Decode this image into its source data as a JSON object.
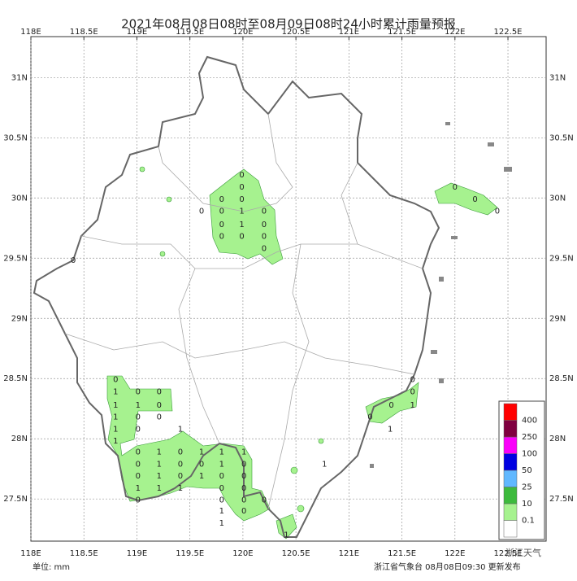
{
  "map": {
    "type": "station-map",
    "title": "2021年08月08日08时至08月09日08时24小时累计雨量预报",
    "unit_label": "单位: mm",
    "issuer": "浙江省气象台 08月08日09:30 更新发布",
    "watermark": "浙江天气",
    "xlim": [
      118,
      122.86
    ],
    "ylim": [
      27.15,
      31.34
    ],
    "xticks": [
      {
        "value": 118,
        "label": "118E"
      },
      {
        "value": 118.5,
        "label": "118.5E"
      },
      {
        "value": 119,
        "label": "119E"
      },
      {
        "value": 119.5,
        "label": "119.5E"
      },
      {
        "value": 120,
        "label": "120E"
      },
      {
        "value": 120.5,
        "label": "120.5E"
      },
      {
        "value": 121,
        "label": "121E"
      },
      {
        "value": 121.5,
        "label": "121.5E"
      },
      {
        "value": 122,
        "label": "122E"
      },
      {
        "value": 122.5,
        "label": "122.5E"
      }
    ],
    "yticks": [
      {
        "value": 31,
        "label": "31N"
      },
      {
        "value": 30.5,
        "label": "30.5N"
      },
      {
        "value": 30,
        "label": "30N"
      },
      {
        "value": 29.5,
        "label": "29.5N"
      },
      {
        "value": 29,
        "label": "29N"
      },
      {
        "value": 28.5,
        "label": "28.5N"
      },
      {
        "value": 28,
        "label": "28N"
      },
      {
        "value": 27.5,
        "label": "27.5N"
      }
    ],
    "grid": true,
    "legend": {
      "thresholds": [
        0.1,
        10,
        25,
        50,
        100,
        250,
        400
      ],
      "colors": [
        "#ffffff",
        "#a6f28f",
        "#3dba3d",
        "#61b8ff",
        "#0000e1",
        "#fa00fa",
        "#800040",
        "#ff0000"
      ]
    },
    "stations": [
      {
        "lon": 119.99,
        "lat": 30.19,
        "value": 0
      },
      {
        "lon": 119.99,
        "lat": 30.09,
        "value": 0
      },
      {
        "lon": 119.99,
        "lat": 29.99,
        "value": 0
      },
      {
        "lon": 119.99,
        "lat": 29.89,
        "value": 1
      },
      {
        "lon": 119.99,
        "lat": 29.78,
        "value": 1
      },
      {
        "lon": 119.99,
        "lat": 29.68,
        "value": 0
      },
      {
        "lon": 119.61,
        "lat": 29.89,
        "value": 0
      },
      {
        "lon": 119.8,
        "lat": 29.99,
        "value": 0
      },
      {
        "lon": 119.8,
        "lat": 29.89,
        "value": 0
      },
      {
        "lon": 119.8,
        "lat": 29.78,
        "value": 0
      },
      {
        "lon": 119.8,
        "lat": 29.68,
        "value": 0
      },
      {
        "lon": 120.2,
        "lat": 29.89,
        "value": 0
      },
      {
        "lon": 120.2,
        "lat": 29.78,
        "value": 0
      },
      {
        "lon": 120.2,
        "lat": 29.68,
        "value": 0
      },
      {
        "lon": 120.2,
        "lat": 29.58,
        "value": 0
      },
      {
        "lon": 118.4,
        "lat": 29.48,
        "value": 0
      },
      {
        "lon": 122.0,
        "lat": 30.09,
        "value": 0
      },
      {
        "lon": 122.19,
        "lat": 29.99,
        "value": 0
      },
      {
        "lon": 122.4,
        "lat": 29.89,
        "value": 0
      },
      {
        "lon": 118.8,
        "lat": 28.49,
        "value": 0
      },
      {
        "lon": 118.8,
        "lat": 28.39,
        "value": 1
      },
      {
        "lon": 118.8,
        "lat": 28.28,
        "value": 1
      },
      {
        "lon": 118.8,
        "lat": 28.18,
        "value": 1
      },
      {
        "lon": 118.8,
        "lat": 28.08,
        "value": 1
      },
      {
        "lon": 118.8,
        "lat": 27.98,
        "value": 1
      },
      {
        "lon": 119.01,
        "lat": 28.39,
        "value": 0
      },
      {
        "lon": 119.01,
        "lat": 28.28,
        "value": 1
      },
      {
        "lon": 119.01,
        "lat": 28.18,
        "value": 0
      },
      {
        "lon": 119.21,
        "lat": 28.39,
        "value": 0
      },
      {
        "lon": 119.21,
        "lat": 28.28,
        "value": 0
      },
      {
        "lon": 119.21,
        "lat": 28.18,
        "value": 0
      },
      {
        "lon": 119.01,
        "lat": 28.08,
        "value": 0
      },
      {
        "lon": 119.01,
        "lat": 27.89,
        "value": 0
      },
      {
        "lon": 119.01,
        "lat": 27.79,
        "value": 0
      },
      {
        "lon": 119.01,
        "lat": 27.69,
        "value": 0
      },
      {
        "lon": 119.01,
        "lat": 27.59,
        "value": 1
      },
      {
        "lon": 119.01,
        "lat": 27.49,
        "value": 0
      },
      {
        "lon": 119.21,
        "lat": 27.89,
        "value": 1
      },
      {
        "lon": 119.21,
        "lat": 27.79,
        "value": 1
      },
      {
        "lon": 119.21,
        "lat": 27.69,
        "value": 1
      },
      {
        "lon": 119.21,
        "lat": 27.59,
        "value": 1
      },
      {
        "lon": 119.41,
        "lat": 28.08,
        "value": 1
      },
      {
        "lon": 119.41,
        "lat": 27.89,
        "value": 0
      },
      {
        "lon": 119.41,
        "lat": 27.79,
        "value": 0
      },
      {
        "lon": 119.41,
        "lat": 27.69,
        "value": 0
      },
      {
        "lon": 119.41,
        "lat": 27.59,
        "value": 1
      },
      {
        "lon": 119.61,
        "lat": 27.89,
        "value": 1
      },
      {
        "lon": 119.61,
        "lat": 27.79,
        "value": 0
      },
      {
        "lon": 119.61,
        "lat": 27.69,
        "value": 1
      },
      {
        "lon": 119.8,
        "lat": 27.89,
        "value": 1
      },
      {
        "lon": 119.8,
        "lat": 27.79,
        "value": 1
      },
      {
        "lon": 119.8,
        "lat": 27.69,
        "value": 0
      },
      {
        "lon": 119.8,
        "lat": 27.59,
        "value": 0
      },
      {
        "lon": 119.8,
        "lat": 27.49,
        "value": 0
      },
      {
        "lon": 119.8,
        "lat": 27.4,
        "value": 1
      },
      {
        "lon": 119.8,
        "lat": 27.3,
        "value": 1
      },
      {
        "lon": 120.01,
        "lat": 27.89,
        "value": 1
      },
      {
        "lon": 120.01,
        "lat": 27.79,
        "value": 0
      },
      {
        "lon": 120.01,
        "lat": 27.69,
        "value": 0
      },
      {
        "lon": 120.01,
        "lat": 27.59,
        "value": 0
      },
      {
        "lon": 120.01,
        "lat": 27.49,
        "value": 0
      },
      {
        "lon": 120.01,
        "lat": 27.4,
        "value": 0
      },
      {
        "lon": 120.2,
        "lat": 27.49,
        "value": 0
      },
      {
        "lon": 120.41,
        "lat": 27.2,
        "value": 1
      },
      {
        "lon": 120.77,
        "lat": 27.79,
        "value": 1
      },
      {
        "lon": 121.2,
        "lat": 28.18,
        "value": 0
      },
      {
        "lon": 121.39,
        "lat": 28.08,
        "value": 1
      },
      {
        "lon": 121.4,
        "lat": 28.28,
        "value": 0
      },
      {
        "lon": 121.6,
        "lat": 28.49,
        "value": 0
      },
      {
        "lon": 121.6,
        "lat": 28.39,
        "value": 0
      },
      {
        "lon": 121.6,
        "lat": 28.28,
        "value": 1
      }
    ]
  }
}
